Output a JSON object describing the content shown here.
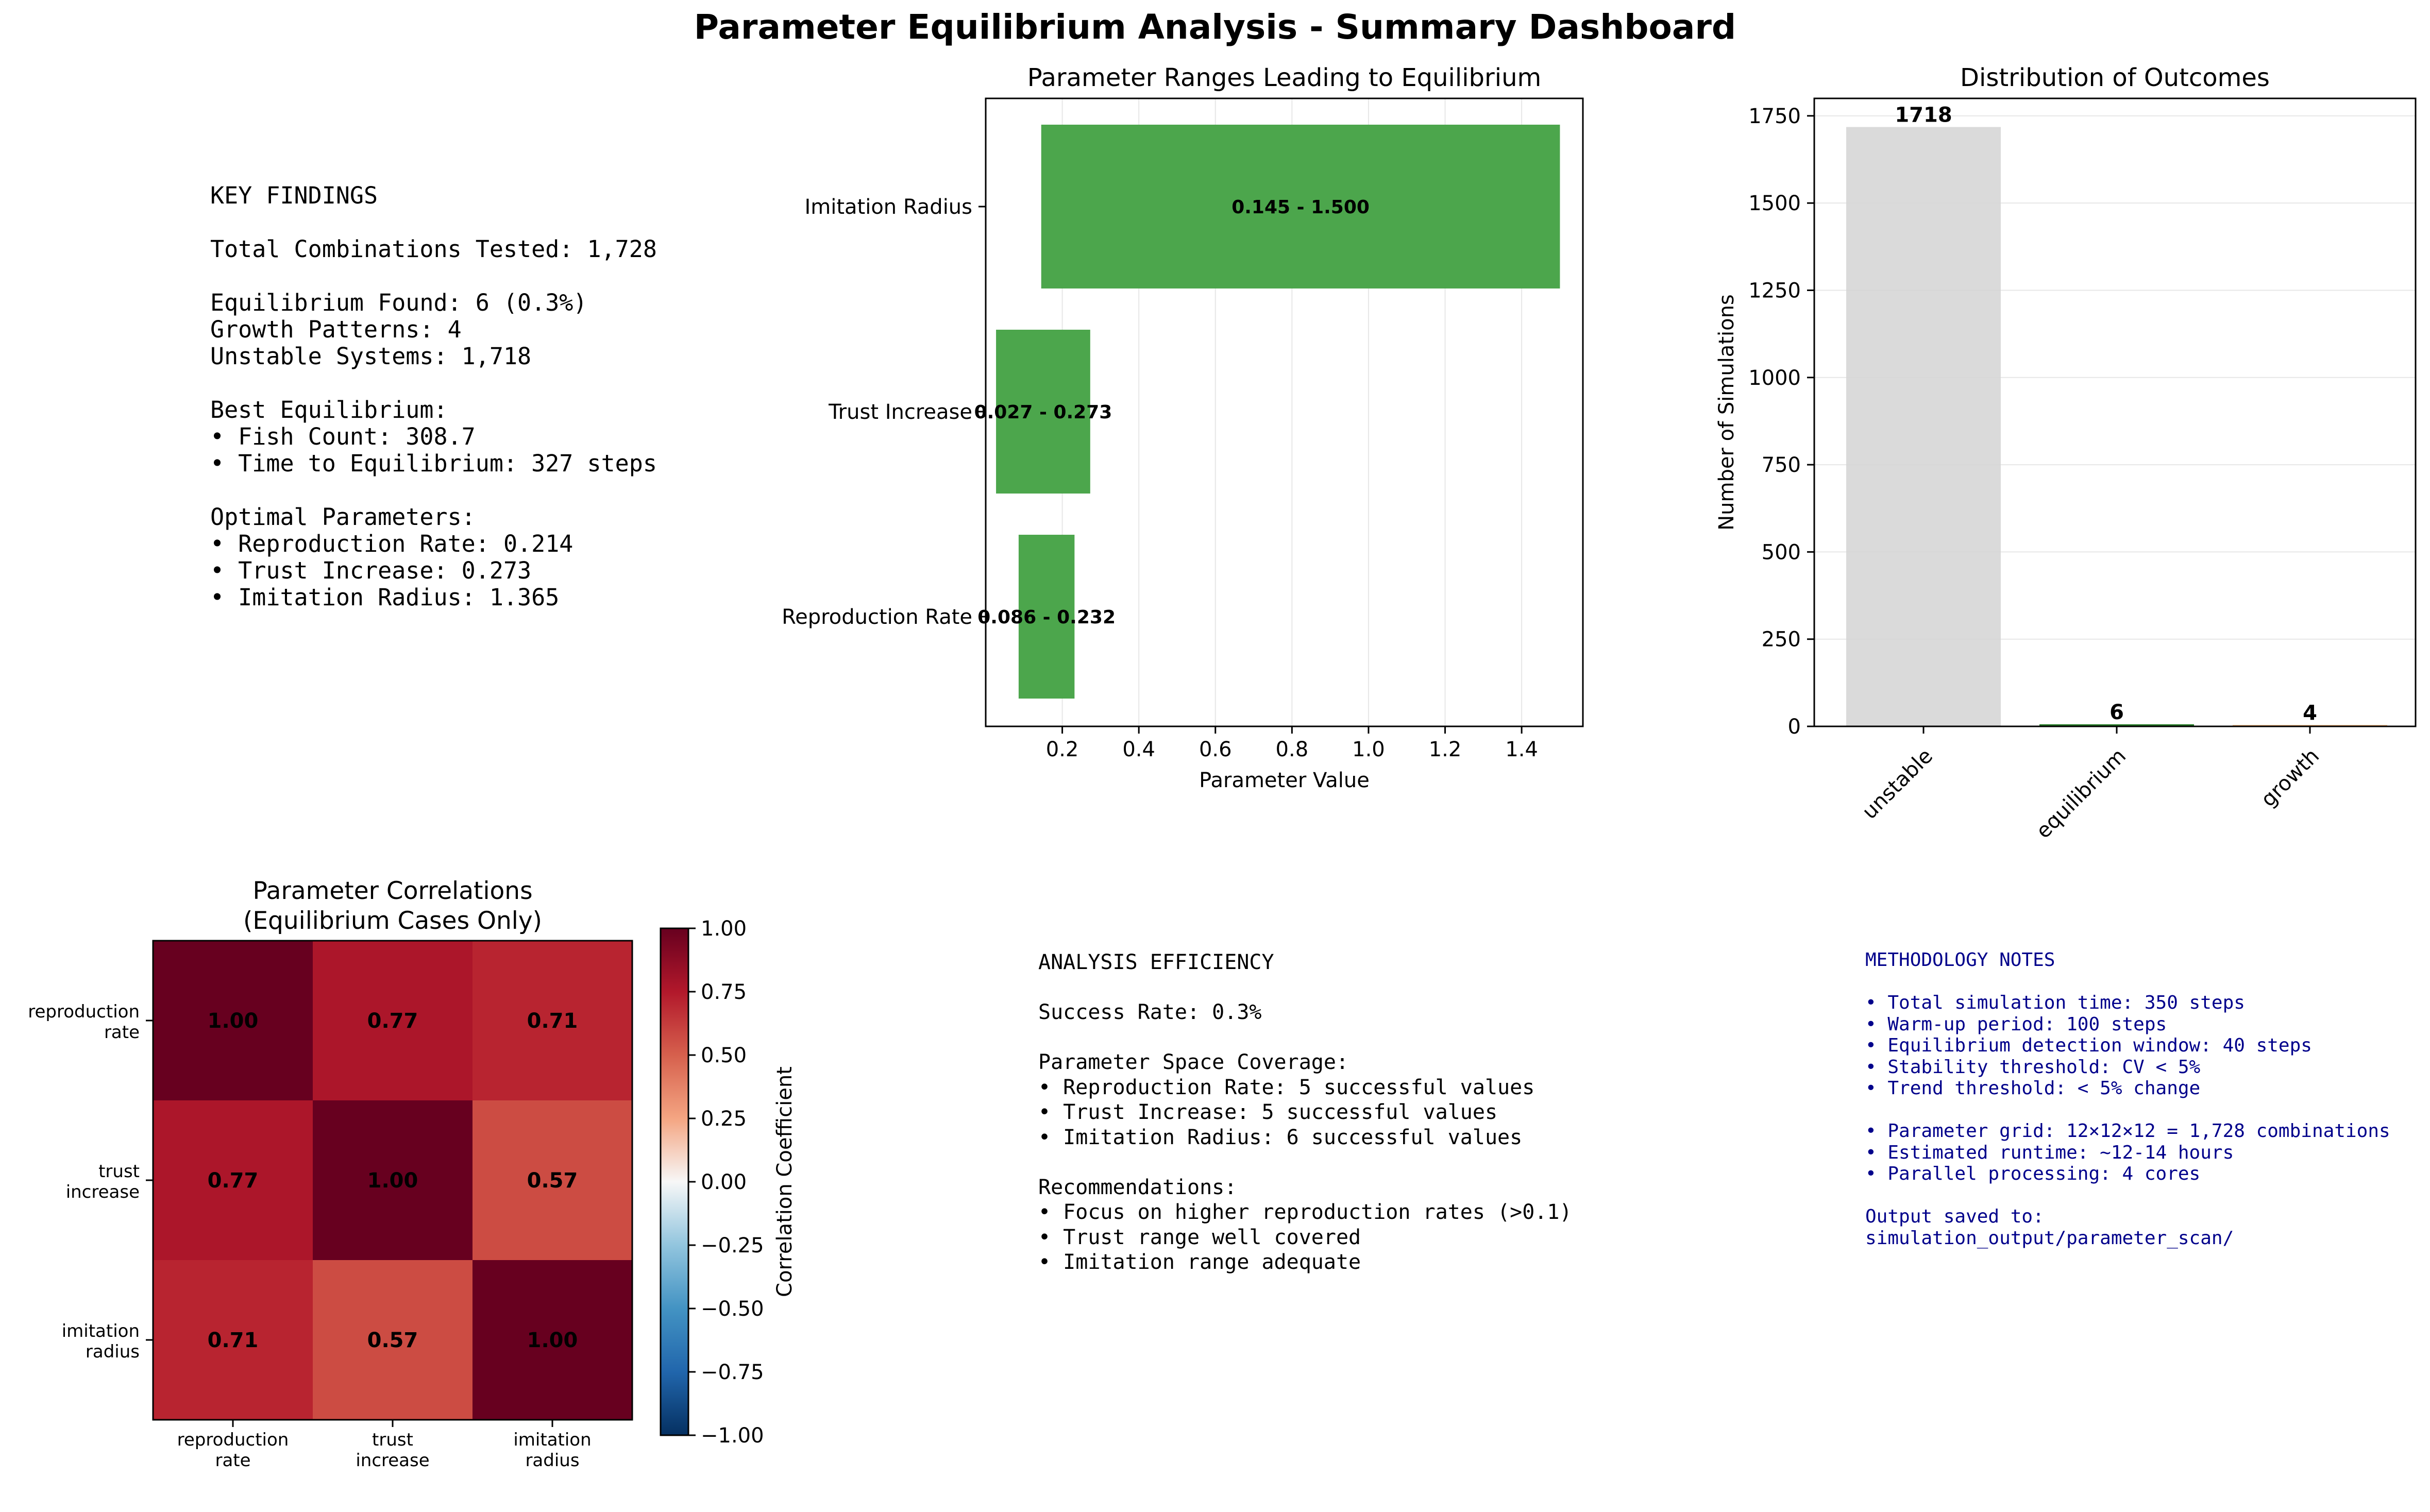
{
  "title": "Parameter Equilibrium Analysis - Summary Dashboard",
  "key_findings": {
    "lines": [
      "KEY FINDINGS",
      "",
      "Total Combinations Tested: 1,728",
      "",
      "Equilibrium Found: 6 (0.3%)",
      "Growth Patterns: 4",
      "Unstable Systems: 1,718",
      "",
      "Best Equilibrium:",
      "• Fish Count: 308.7",
      "• Time to Equilibrium: 327 steps",
      "",
      "Optimal Parameters:",
      "• Reproduction Rate: 0.214",
      "• Trust Increase: 0.273",
      "• Imitation Radius: 1.365"
    ]
  },
  "analysis_efficiency": {
    "lines": [
      "ANALYSIS EFFICIENCY",
      "",
      "Success Rate: 0.3%",
      "",
      "Parameter Space Coverage:",
      "• Reproduction Rate: 5 successful values",
      "• Trust Increase: 5 successful values",
      "• Imitation Radius: 6 successful values",
      "",
      "Recommendations:",
      "• Focus on higher reproduction rates (>0.1)",
      "• Trust range well covered",
      "• Imitation range adequate"
    ]
  },
  "methodology_notes": {
    "lines": [
      "METHODOLOGY NOTES",
      "",
      "• Total simulation time: 350 steps",
      "• Warm-up period: 100 steps",
      "• Equilibrium detection window: 40 steps",
      "• Stability threshold: CV < 5%",
      "• Trend threshold: < 5% change",
      "",
      "• Parameter grid: 12×12×12 = 1,728 combinations",
      "• Estimated runtime: ~12-14 hours",
      "• Parallel processing: 4 cores",
      "",
      "Output saved to:",
      "simulation_output/parameter_scan/"
    ]
  },
  "chart_data": [
    {
      "type": "bar",
      "orientation": "horizontal",
      "title": "Parameter Ranges Leading to Equilibrium",
      "xlabel": "Parameter Value",
      "ylabel": "",
      "categories": [
        "Reproduction Rate",
        "Trust Increase",
        "Imitation Radius"
      ],
      "ranges": [
        [
          0.086,
          0.232
        ],
        [
          0.027,
          0.273
        ],
        [
          0.145,
          1.5
        ]
      ],
      "range_labels": [
        "0.086 - 0.232",
        "0.027 - 0.273",
        "0.145 - 1.500"
      ],
      "xlim": [
        0.0,
        1.56
      ],
      "xticks": [
        0.2,
        0.4,
        0.6,
        0.8,
        1.0,
        1.2,
        1.4
      ],
      "xtick_labels": [
        "0.2",
        "0.4",
        "0.6",
        "0.8",
        "1.0",
        "1.2",
        "1.4"
      ],
      "grid": "x",
      "color": "#4ca64c"
    },
    {
      "type": "bar",
      "title": "Distribution of Outcomes",
      "xlabel": "",
      "ylabel": "Number of Simulations",
      "categories": [
        "unstable",
        "equilibrium",
        "growth"
      ],
      "values": [
        1718,
        6,
        4
      ],
      "colors": [
        "#d3d3d3",
        "#006400",
        "#f4a460"
      ],
      "ylim": [
        0,
        1800
      ],
      "yticks": [
        0,
        250,
        500,
        750,
        1000,
        1250,
        1500,
        1750
      ],
      "ytick_labels": [
        "0",
        "250",
        "500",
        "750",
        "1000",
        "1250",
        "1500",
        "1750"
      ],
      "grid": "y"
    },
    {
      "type": "heatmap",
      "title": "Parameter Correlations\n(Equilibrium Cases Only)",
      "row_labels": [
        "reproduction\nrate",
        "trust\nincrease",
        "imitation\nradius"
      ],
      "col_labels": [
        "reproduction\nrate",
        "trust\nincrease",
        "imitation\nradius"
      ],
      "values": [
        [
          1.0,
          0.77,
          0.71
        ],
        [
          0.77,
          1.0,
          0.57
        ],
        [
          0.71,
          0.57,
          1.0
        ]
      ],
      "value_labels": [
        [
          "1.00",
          "0.77",
          "0.71"
        ],
        [
          "0.77",
          "1.00",
          "0.57"
        ],
        [
          "0.71",
          "0.57",
          "1.00"
        ]
      ],
      "colormap": "RdBu_r",
      "vmin": -1.0,
      "vmax": 1.0,
      "colorbar_label": "Correlation Coefficient",
      "colorbar_ticks": [
        1.0,
        0.75,
        0.5,
        0.25,
        0.0,
        -0.25,
        -0.5,
        -0.75,
        -1.0
      ],
      "colorbar_tick_labels": [
        "1.00",
        "0.75",
        "0.50",
        "0.25",
        "0.00",
        "−0.25",
        "−0.50",
        "−0.75",
        "−1.00"
      ]
    }
  ]
}
